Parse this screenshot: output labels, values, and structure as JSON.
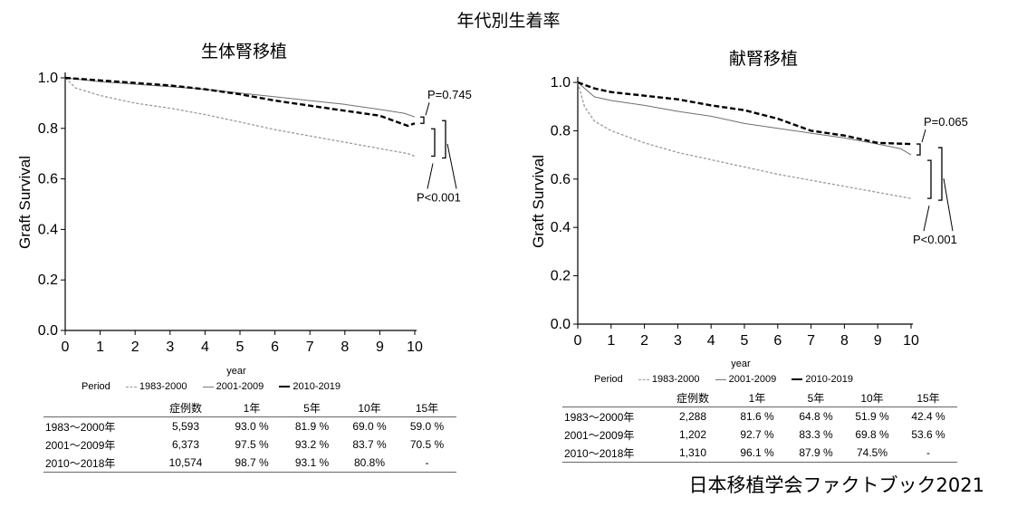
{
  "main_title": "年代別生着率",
  "footer": "日本移植学会ファクトブック2021",
  "table_header": [
    "",
    "症例数",
    "1年",
    "5年",
    "10年",
    "15年"
  ],
  "legend_label": "Period",
  "chart_data": [
    {
      "type": "line",
      "title": "生体腎移植",
      "xlabel": "year",
      "ylabel": "Graft Survival",
      "xlim": [
        0,
        10
      ],
      "ylim": [
        0,
        1
      ],
      "xticks": [
        "0",
        "1",
        "2",
        "3",
        "4",
        "5",
        "6",
        "7",
        "8",
        "9",
        "10"
      ],
      "yticks": [
        "0.0",
        "0.2",
        "0.4",
        "0.6",
        "0.8",
        "1.0"
      ],
      "series": [
        {
          "name": "1983-2000",
          "style": "dotted-gray",
          "x": [
            0,
            0.3,
            1,
            2,
            3,
            4,
            5,
            6,
            7,
            8,
            9,
            9.8,
            10
          ],
          "y": [
            1.0,
            0.96,
            0.93,
            0.9,
            0.88,
            0.855,
            0.825,
            0.795,
            0.77,
            0.745,
            0.72,
            0.7,
            0.69
          ]
        },
        {
          "name": "2001-2009",
          "style": "solid-gray",
          "x": [
            0,
            1,
            2,
            3,
            4,
            5,
            6,
            7,
            8,
            9,
            9.7,
            10
          ],
          "y": [
            1.0,
            0.985,
            0.975,
            0.965,
            0.955,
            0.94,
            0.925,
            0.91,
            0.895,
            0.875,
            0.86,
            0.845
          ]
        },
        {
          "name": "2010-2019",
          "style": "dashed-black",
          "x": [
            0,
            1,
            2,
            3,
            4,
            5,
            6,
            7,
            8,
            9,
            9.4,
            9.6,
            9.8,
            10
          ],
          "y": [
            1.0,
            0.99,
            0.98,
            0.97,
            0.955,
            0.935,
            0.91,
            0.89,
            0.87,
            0.85,
            0.83,
            0.82,
            0.81,
            0.82
          ]
        }
      ],
      "annotations": [
        "P=0.745",
        "P<0.001"
      ],
      "table": [
        [
          "1983～2000年",
          "5,593",
          "93.0 %",
          "81.9 %",
          "69.0 %",
          "59.0 %"
        ],
        [
          "2001～2009年",
          "6,373",
          "97.5 %",
          "93.2 %",
          "83.7 %",
          "70.5 %"
        ],
        [
          "2010～2018年",
          "10,574",
          "98.7 %",
          "93.1 %",
          "80.8%",
          "-"
        ]
      ]
    },
    {
      "type": "line",
      "title": "献腎移植",
      "xlabel": "year",
      "ylabel": "Graft Survival",
      "xlim": [
        0,
        10
      ],
      "ylim": [
        0,
        1
      ],
      "xticks": [
        "0",
        "1",
        "2",
        "3",
        "4",
        "5",
        "6",
        "7",
        "8",
        "9",
        "10"
      ],
      "yticks": [
        "0.0",
        "0.2",
        "0.4",
        "0.6",
        "0.8",
        "1.0"
      ],
      "series": [
        {
          "name": "1983-2000",
          "style": "dotted-gray",
          "x": [
            0,
            0.2,
            0.5,
            1,
            2,
            3,
            4,
            5,
            6,
            7,
            8,
            9,
            10
          ],
          "y": [
            1.0,
            0.9,
            0.84,
            0.8,
            0.75,
            0.71,
            0.68,
            0.65,
            0.62,
            0.595,
            0.57,
            0.545,
            0.52
          ]
        },
        {
          "name": "2001-2009",
          "style": "solid-gray",
          "x": [
            0,
            0.5,
            1,
            2,
            3,
            4,
            5,
            6,
            7,
            8,
            9,
            9.7,
            10
          ],
          "y": [
            1.0,
            0.94,
            0.925,
            0.905,
            0.88,
            0.86,
            0.83,
            0.81,
            0.79,
            0.77,
            0.745,
            0.725,
            0.7
          ]
        },
        {
          "name": "2010-2019",
          "style": "dashed-black",
          "x": [
            0,
            0.5,
            1,
            2,
            3,
            4,
            5,
            6,
            7,
            8,
            9,
            10
          ],
          "y": [
            1.0,
            0.975,
            0.96,
            0.945,
            0.93,
            0.905,
            0.885,
            0.85,
            0.8,
            0.78,
            0.75,
            0.745
          ]
        }
      ],
      "annotations": [
        "P=0.065",
        "P<0.001"
      ],
      "table": [
        [
          "1983～2000年",
          "2,288",
          "81.6 %",
          "64.8 %",
          "51.9 %",
          "42.4 %"
        ],
        [
          "2001～2009年",
          "1,202",
          "92.7 %",
          "83.3 %",
          "69.8 %",
          "53.6 %"
        ],
        [
          "2010～2018年",
          "1,310",
          "96.1 %",
          "87.9 %",
          "74.5%",
          "-"
        ]
      ]
    }
  ]
}
